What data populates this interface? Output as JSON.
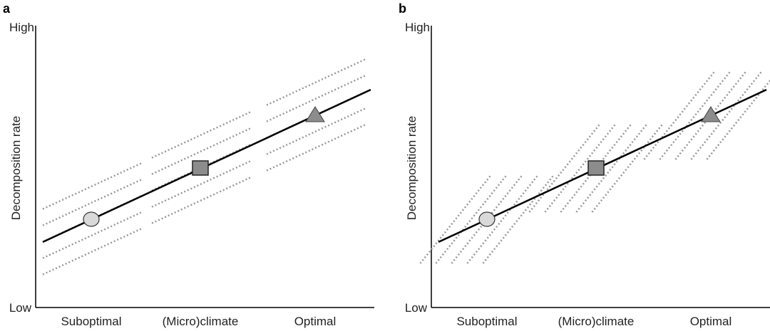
{
  "panels": [
    {
      "label": "a",
      "y_axis": {
        "title": "Decomposition rate",
        "high": "High",
        "low": "Low"
      },
      "x_labels": [
        "Suboptimal",
        "(Micro)climate",
        "Optimal"
      ]
    },
    {
      "label": "b",
      "y_axis": {
        "title": "Decomposition rate",
        "high": "High",
        "low": "Low"
      },
      "x_labels": [
        "Suboptimal",
        "(Micro)climate",
        "Optimal"
      ]
    }
  ]
}
